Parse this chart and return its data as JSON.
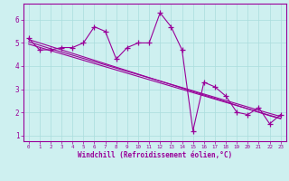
{
  "xlabel": "Windchill (Refroidissement éolien,°C)",
  "ylabel": "",
  "bg_color": "#cef0f0",
  "line_color": "#990099",
  "grid_color": "#aadddd",
  "x_data": [
    0,
    1,
    2,
    3,
    4,
    5,
    6,
    7,
    8,
    9,
    10,
    11,
    12,
    13,
    14,
    15,
    16,
    17,
    18,
    19,
    20,
    21,
    22,
    23
  ],
  "y_main": [
    5.2,
    4.7,
    4.7,
    4.8,
    4.8,
    5.0,
    5.7,
    5.5,
    4.3,
    4.8,
    5.0,
    5.0,
    6.3,
    5.7,
    4.7,
    1.2,
    3.3,
    3.1,
    2.7,
    2.0,
    1.9,
    2.2,
    1.5,
    1.9
  ],
  "y_trend1": [
    5.15,
    5.0,
    4.85,
    4.7,
    4.55,
    4.4,
    4.25,
    4.1,
    3.95,
    3.8,
    3.65,
    3.5,
    3.35,
    3.2,
    3.05,
    2.9,
    2.75,
    2.6,
    2.45,
    2.3,
    2.15,
    2.0,
    1.85,
    1.72
  ],
  "y_trend2": [
    5.05,
    4.9,
    4.75,
    4.61,
    4.47,
    4.33,
    4.19,
    4.05,
    3.91,
    3.77,
    3.63,
    3.49,
    3.35,
    3.21,
    3.07,
    2.93,
    2.79,
    2.65,
    2.51,
    2.37,
    2.23,
    2.09,
    1.95,
    1.82
  ],
  "y_trend3": [
    4.95,
    4.81,
    4.67,
    4.53,
    4.39,
    4.25,
    4.11,
    3.97,
    3.83,
    3.69,
    3.55,
    3.41,
    3.27,
    3.13,
    2.99,
    2.85,
    2.71,
    2.57,
    2.43,
    2.29,
    2.15,
    2.01,
    1.87,
    1.74
  ],
  "ylim": [
    0.75,
    6.7
  ],
  "xlim": [
    -0.5,
    23.5
  ],
  "yticks": [
    1,
    2,
    3,
    4,
    5,
    6
  ],
  "xticks": [
    0,
    1,
    2,
    3,
    4,
    5,
    6,
    7,
    8,
    9,
    10,
    11,
    12,
    13,
    14,
    15,
    16,
    17,
    18,
    19,
    20,
    21,
    22,
    23
  ],
  "marker": "+",
  "markersize": 4,
  "linewidth": 0.8
}
